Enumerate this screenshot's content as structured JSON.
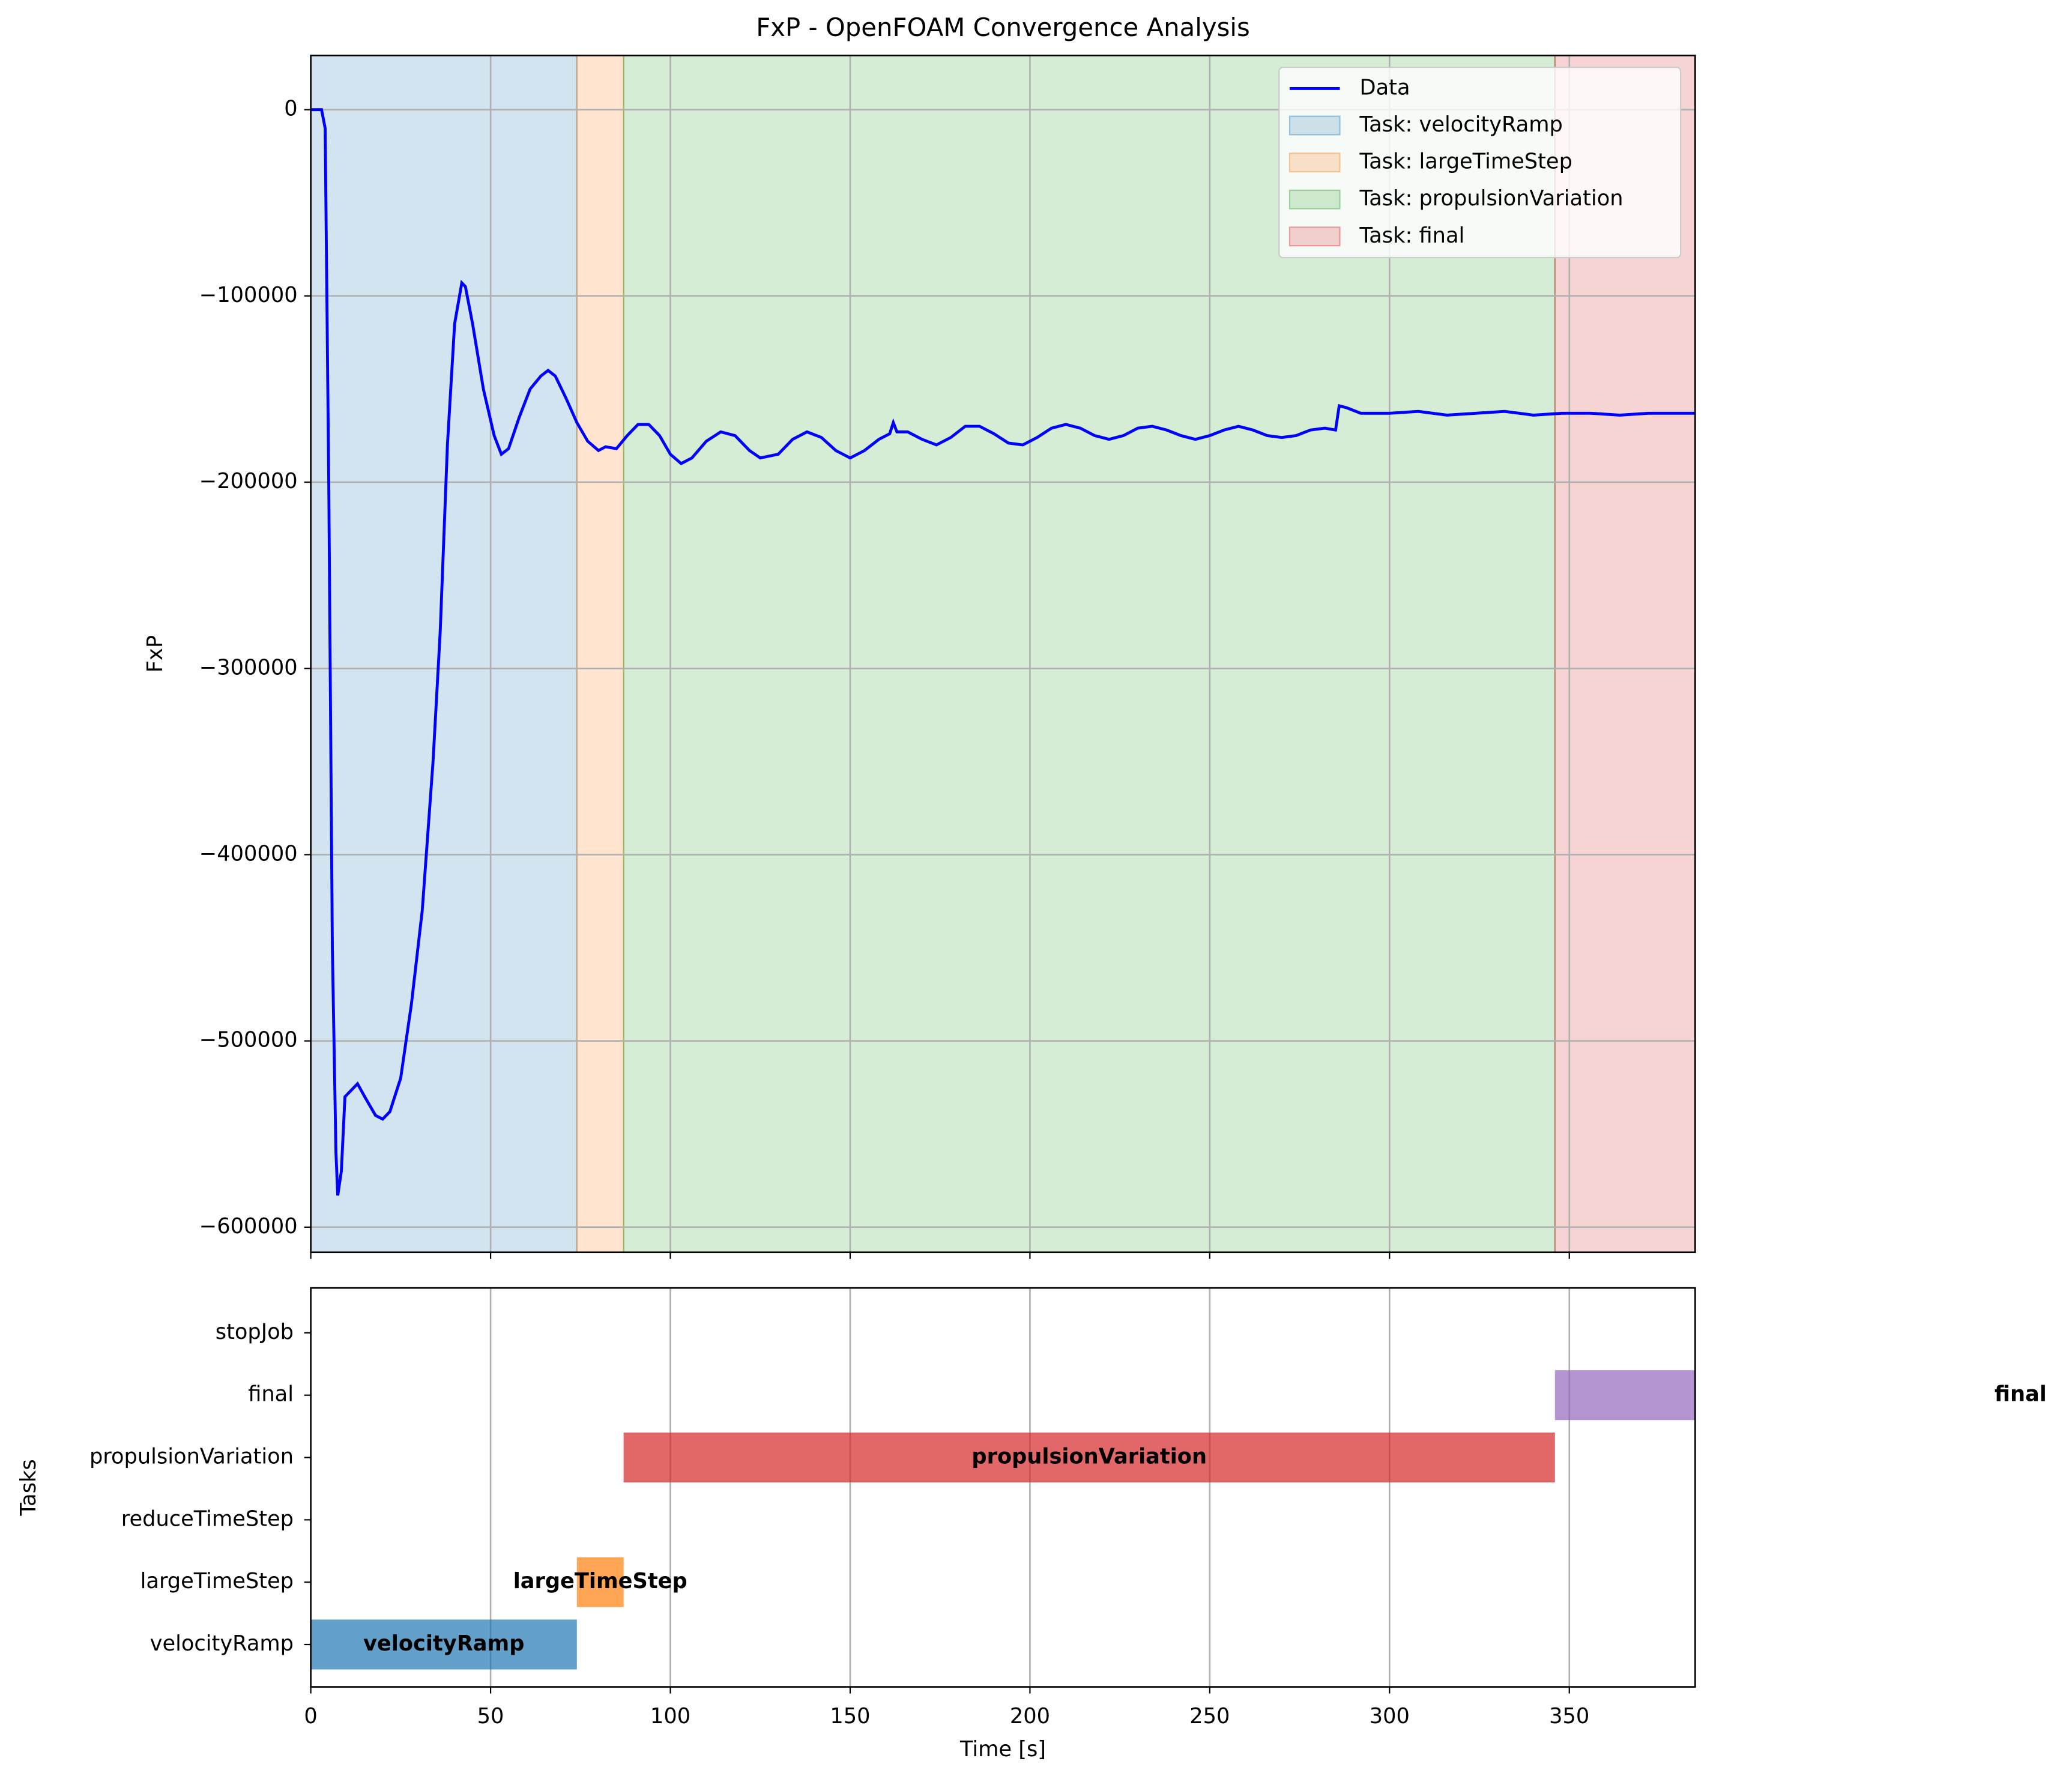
{
  "chart_data": [
    {
      "type": "line",
      "title": "FxP - OpenFOAM Convergence Analysis",
      "ylabel": "FxP",
      "xlim": [
        0,
        385
      ],
      "xticks": [
        0,
        50,
        100,
        150,
        200,
        250,
        300,
        350
      ],
      "ylim": [
        -613500,
        29100
      ],
      "yticks": [
        {
          "value": -600000,
          "label": "−600000"
        },
        {
          "value": -500000,
          "label": "−500000"
        },
        {
          "value": -400000,
          "label": "−400000"
        },
        {
          "value": -300000,
          "label": "−300000"
        },
        {
          "value": -200000,
          "label": "−200000"
        },
        {
          "value": -100000,
          "label": "−100000"
        },
        0
      ],
      "grid": true,
      "legend": "upper right",
      "spans": [
        {
          "name": "Task: velocityRamp",
          "start": 0,
          "end": 74,
          "color": "#1f77b4"
        },
        {
          "name": "Task: largeTimeStep",
          "start": 74,
          "end": 87,
          "color": "#ff7f0e"
        },
        {
          "name": "Task: propulsionVariation",
          "start": 87,
          "end": 346,
          "color": "#2ca02c"
        },
        {
          "name": "Task: final",
          "start": 346,
          "end": 385,
          "color": "#d62728"
        }
      ],
      "span_alpha": 0.2,
      "series": [
        {
          "name": "Data",
          "color": "#0000ff",
          "x": [
            0,
            3,
            4,
            5,
            6,
            7,
            7.5,
            8.5,
            9.5,
            11,
            13,
            15,
            18,
            20,
            22,
            25,
            28,
            31,
            34,
            36,
            38,
            40,
            42,
            43,
            45,
            48,
            51,
            53,
            55,
            58,
            61,
            64,
            66,
            68,
            71,
            74,
            77,
            80,
            82,
            85,
            88,
            91,
            94,
            97,
            100,
            103,
            106,
            110,
            114,
            118,
            122,
            125,
            130,
            134,
            138,
            142,
            146,
            150,
            154,
            158,
            161,
            162,
            163,
            166,
            170,
            174,
            178,
            182,
            186,
            190,
            194,
            198,
            202,
            206,
            210,
            214,
            218,
            222,
            226,
            230,
            234,
            238,
            242,
            246,
            250,
            254,
            258,
            262,
            266,
            270,
            274,
            278,
            282,
            285,
            286,
            288,
            292,
            300,
            308,
            316,
            324,
            332,
            340,
            348,
            356,
            364,
            372,
            380,
            385
          ],
          "values": [
            0,
            0,
            -10000,
            -200000,
            -450000,
            -560000,
            -583000,
            -570000,
            -530000,
            -527000,
            -523000,
            -530000,
            -540000,
            -542000,
            -538000,
            -520000,
            -480000,
            -430000,
            -350000,
            -280000,
            -180000,
            -115000,
            -93000,
            -95000,
            -115000,
            -150000,
            -175000,
            -185000,
            -182000,
            -165000,
            -150000,
            -143000,
            -140000,
            -143000,
            -155000,
            -168000,
            -178000,
            -183000,
            -181000,
            -182000,
            -175000,
            -169000,
            -169000,
            -175000,
            -185000,
            -190000,
            -187000,
            -178000,
            -173000,
            -175000,
            -183000,
            -187000,
            -185000,
            -177000,
            -173000,
            -176000,
            -183000,
            -187000,
            -183000,
            -177000,
            -174000,
            -168000,
            -173000,
            -173000,
            -177000,
            -180000,
            -176000,
            -170000,
            -170000,
            -174000,
            -179000,
            -180000,
            -176000,
            -171000,
            -169000,
            -171000,
            -175000,
            -177000,
            -175000,
            -171000,
            -170000,
            -172000,
            -175000,
            -177000,
            -175000,
            -172000,
            -170000,
            -172000,
            -175000,
            -176000,
            -175000,
            -172000,
            -171000,
            -172000,
            -159000,
            -160000,
            -163000,
            -163000,
            -162000,
            -164000,
            -163000,
            -162000,
            -164000,
            -163000,
            -163000,
            -164000,
            -163000,
            -163000,
            -163000
          ]
        }
      ]
    },
    {
      "type": "gantt",
      "xlabel": "Time [s]",
      "ylabel": "Tasks",
      "xlim": [
        0,
        385
      ],
      "xticks": [
        0,
        50,
        100,
        150,
        200,
        250,
        300,
        350
      ],
      "grid": true,
      "categories": [
        "velocityRamp",
        "largeTimeStep",
        "reduceTimeStep",
        "propulsionVariation",
        "final",
        "stopJob"
      ],
      "bar_alpha": 0.7,
      "bars": [
        {
          "name": "velocityRamp",
          "row": 0,
          "start": 0,
          "end": 74,
          "color": "#1f77b4"
        },
        {
          "name": "largeTimeStep",
          "row": 1,
          "start": 74,
          "end": 87,
          "color": "#ff7f0e"
        },
        {
          "name": "propulsionVariation",
          "row": 3,
          "start": 87,
          "end": 346,
          "color": "#d62728"
        },
        {
          "name": "final",
          "row": 4,
          "start": 346,
          "end": 605,
          "color": "#9467bd"
        }
      ]
    }
  ]
}
